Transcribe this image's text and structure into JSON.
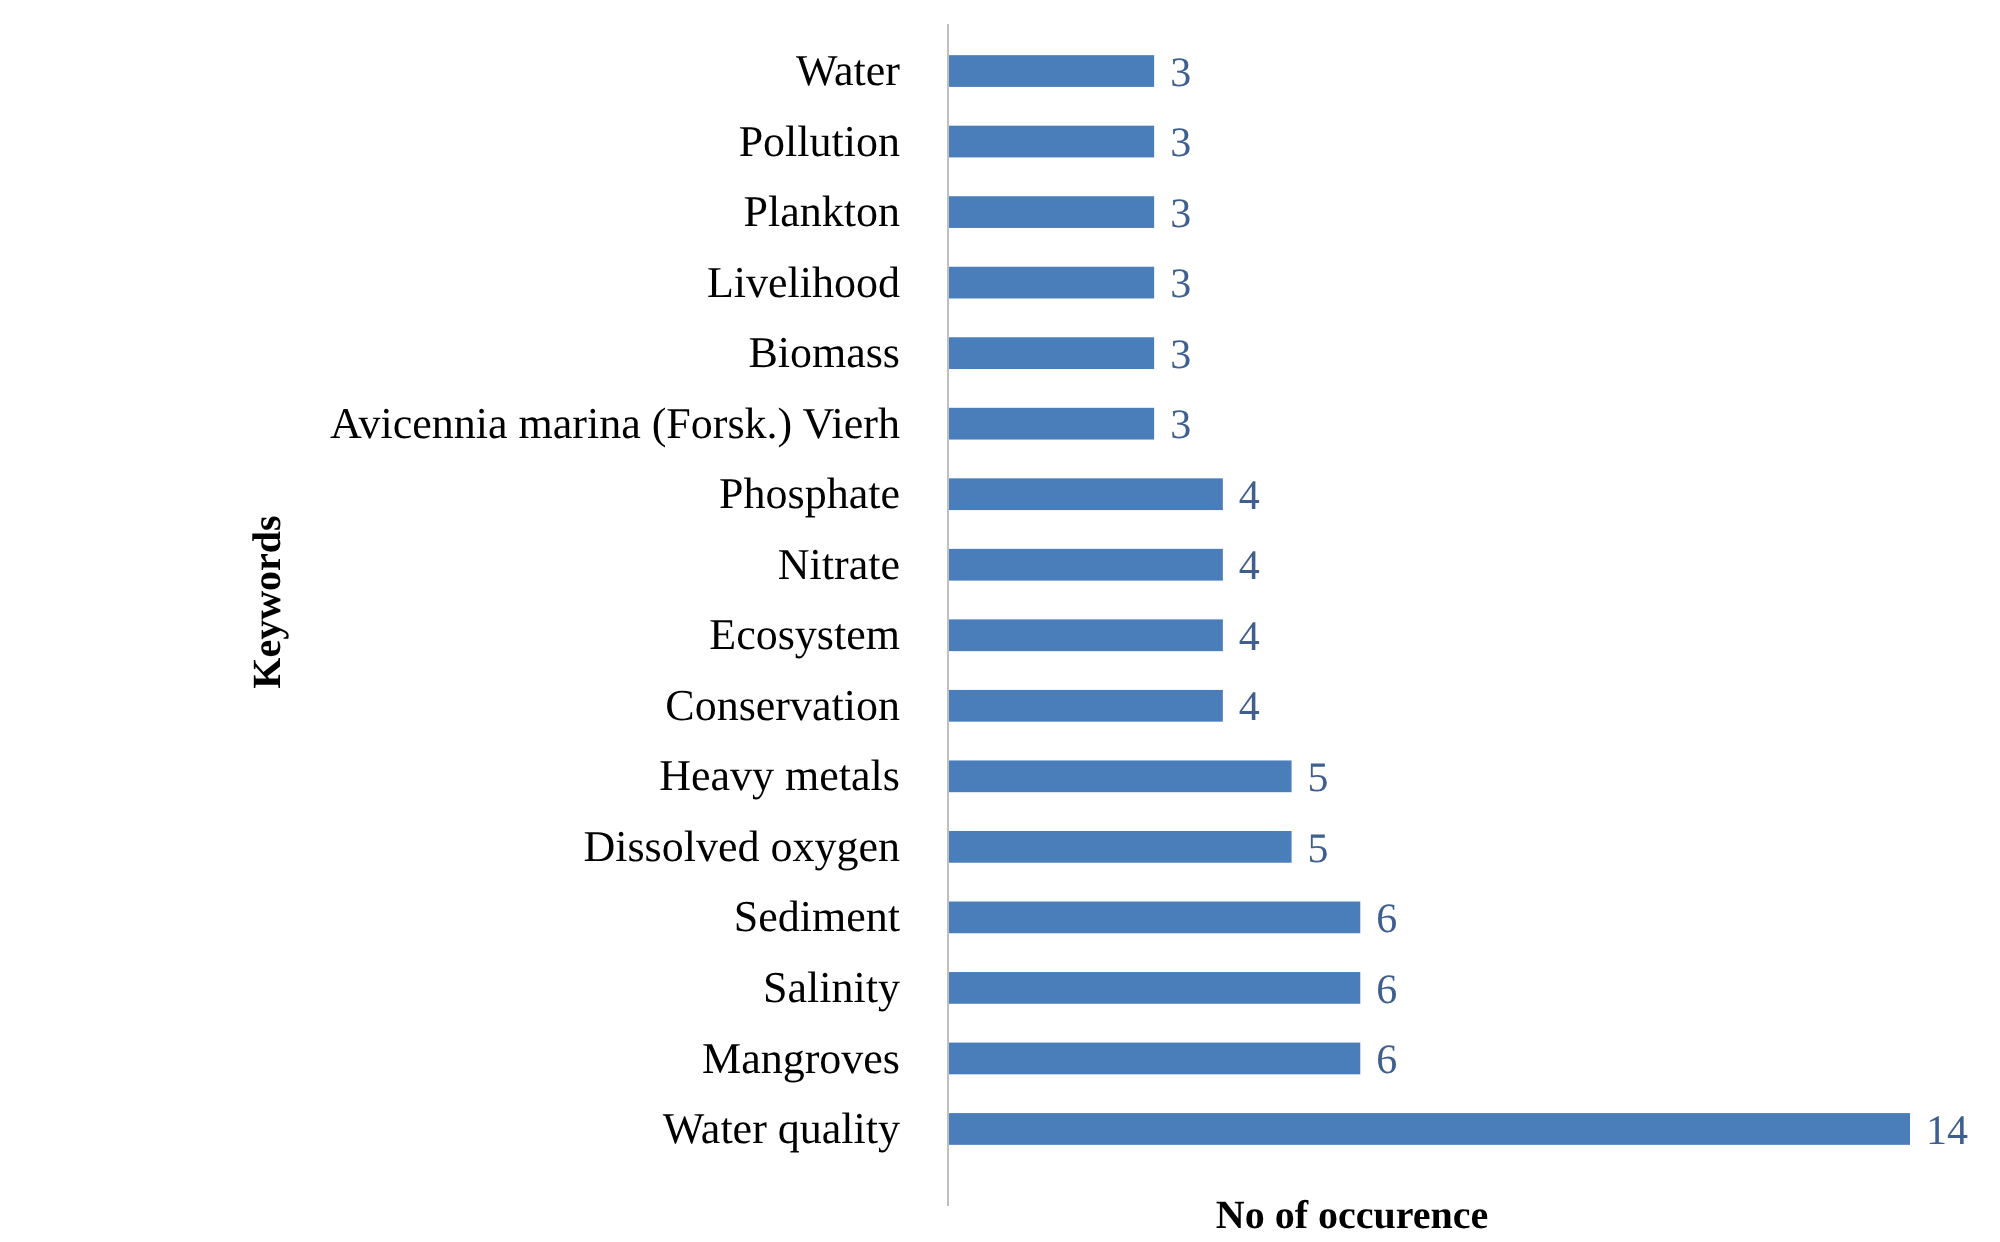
{
  "chart_data": {
    "type": "bar",
    "orientation": "horizontal",
    "xlabel": "No of occurence",
    "ylabel": "Keywords",
    "categories": [
      "Water",
      "Pollution",
      "Plankton",
      "Livelihood",
      "Biomass",
      "Avicennia marina (Forsk.) Vierh",
      "Phosphate",
      "Nitrate",
      "Ecosystem",
      "Conservation",
      "Heavy metals",
      "Dissolved oxygen",
      "Sediment",
      "Salinity",
      "Mangroves",
      "Water quality"
    ],
    "values": [
      3,
      3,
      3,
      3,
      3,
      3,
      4,
      4,
      4,
      4,
      5,
      5,
      6,
      6,
      6,
      14
    ],
    "color": "#4a7ebb",
    "data_labels": true,
    "tick_labels": "y"
  }
}
